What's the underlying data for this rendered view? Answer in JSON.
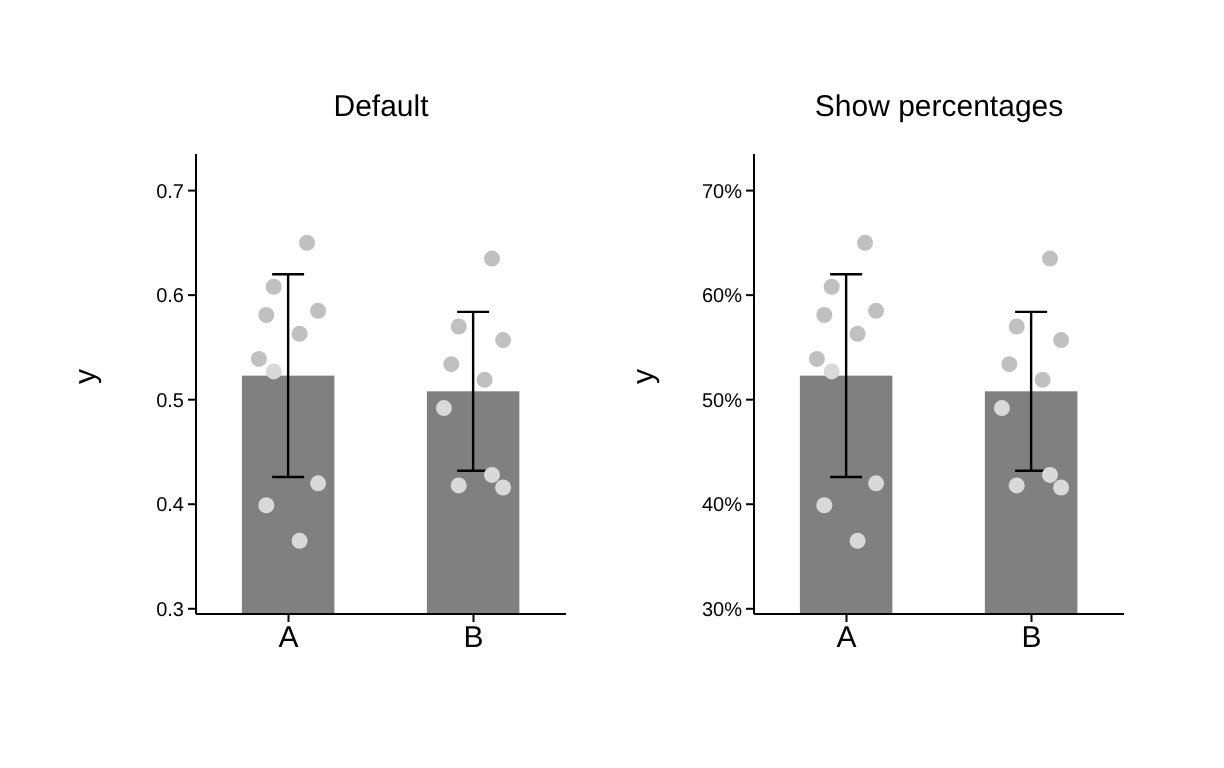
{
  "chart_data": [
    {
      "type": "bar",
      "title": "Default",
      "ylabel": "y",
      "categories": [
        "A",
        "B"
      ],
      "ylim": [
        0.295,
        0.735
      ],
      "yticks": [
        0.3,
        0.4,
        0.5,
        0.6,
        0.7
      ],
      "grid": false,
      "legend": false,
      "series": [
        {
          "color": "#808080",
          "values": [
            0.523,
            0.508
          ],
          "errors": [
            0.097,
            0.076
          ]
        },
        {
          "type": "scatter",
          "color": "#c0c0c0",
          "marker": "circle",
          "x": [
            "A",
            "A",
            "A",
            "A",
            "A",
            "A",
            "B",
            "B",
            "B",
            "B",
            "B"
          ],
          "values": [
            0.65,
            0.608,
            0.585,
            0.581,
            0.563,
            0.539,
            0.635,
            0.57,
            0.557,
            0.534,
            0.519
          ]
        },
        {
          "type": "scatter",
          "color": "#d9d9d9",
          "marker": "circle",
          "x": [
            "A",
            "A",
            "A",
            "A",
            "B",
            "B",
            "B",
            "B"
          ],
          "values": [
            0.527,
            0.42,
            0.399,
            0.365,
            0.492,
            0.428,
            0.418,
            0.416
          ]
        }
      ]
    },
    {
      "type": "bar",
      "title": "Show percentages",
      "ylabel": "y",
      "categories": [
        "A",
        "B"
      ],
      "ylim": [
        0.295,
        0.735
      ],
      "yticks": [
        {
          "value": 0.3,
          "label": "30%"
        },
        {
          "value": 0.4,
          "label": "40%"
        },
        {
          "value": 0.5,
          "label": "50%"
        },
        {
          "value": 0.6,
          "label": "60%"
        },
        {
          "value": 0.7,
          "label": "70%"
        }
      ],
      "grid": false,
      "legend": false,
      "series": [
        {
          "color": "#808080",
          "values": [
            0.523,
            0.508
          ],
          "errors": [
            0.097,
            0.076
          ]
        },
        {
          "type": "scatter",
          "color": "#c0c0c0",
          "marker": "circle",
          "x": [
            "A",
            "A",
            "A",
            "A",
            "A",
            "A",
            "B",
            "B",
            "B",
            "B",
            "B"
          ],
          "values": [
            0.65,
            0.608,
            0.585,
            0.581,
            0.563,
            0.539,
            0.635,
            0.57,
            0.557,
            0.534,
            0.519
          ]
        },
        {
          "type": "scatter",
          "color": "#d9d9d9",
          "marker": "circle",
          "x": [
            "A",
            "A",
            "A",
            "A",
            "B",
            "B",
            "B",
            "B"
          ],
          "values": [
            0.527,
            0.42,
            0.399,
            0.365,
            0.492,
            0.428,
            0.418,
            0.416
          ]
        }
      ]
    }
  ]
}
